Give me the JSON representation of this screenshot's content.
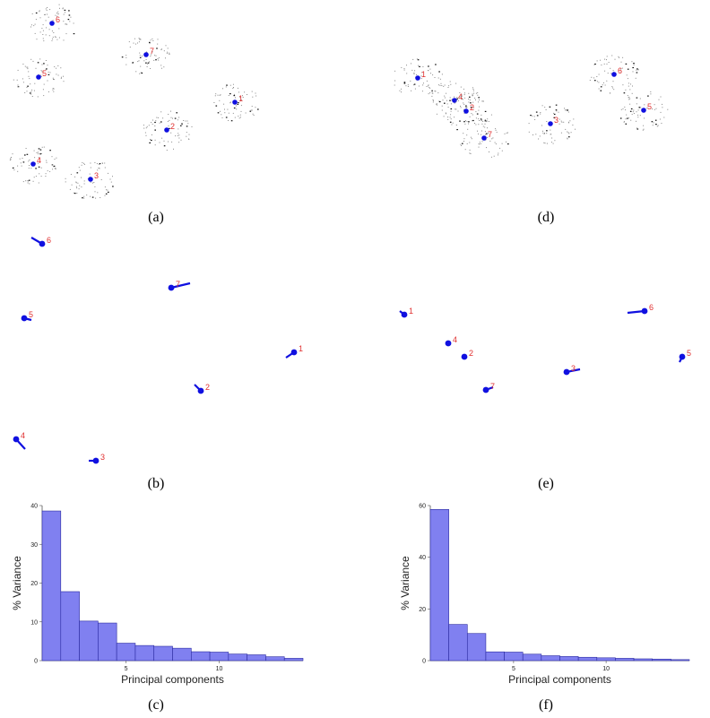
{
  "panels": {
    "a": {
      "caption": "(a)",
      "points": [
        {
          "label": "6",
          "x": 58,
          "y": 26
        },
        {
          "label": "7",
          "x": 163,
          "y": 61
        },
        {
          "label": "5",
          "x": 43,
          "y": 86
        },
        {
          "label": "1",
          "x": 262,
          "y": 114
        },
        {
          "label": "2",
          "x": 186,
          "y": 145
        },
        {
          "label": "4",
          "x": 37,
          "y": 183
        },
        {
          "label": "3",
          "x": 101,
          "y": 200
        }
      ]
    },
    "d": {
      "caption": "(d)",
      "points": [
        {
          "label": "1",
          "x": 466,
          "y": 87
        },
        {
          "label": "4",
          "x": 507,
          "y": 112
        },
        {
          "label": "2",
          "x": 520,
          "y": 124
        },
        {
          "label": "7",
          "x": 540,
          "y": 154
        },
        {
          "label": "3",
          "x": 614,
          "y": 138
        },
        {
          "label": "6",
          "x": 685,
          "y": 83
        },
        {
          "label": "5",
          "x": 718,
          "y": 123
        }
      ]
    },
    "b": {
      "caption": "(b)",
      "points": [
        {
          "label": "6",
          "x": 47,
          "y": 272,
          "tx": 35,
          "ty": 265
        },
        {
          "label": "7",
          "x": 191,
          "y": 321,
          "tx": 212,
          "ty": 316
        },
        {
          "label": "5",
          "x": 27,
          "y": 355,
          "tx": 35,
          "ty": 357
        },
        {
          "label": "1",
          "x": 328,
          "y": 393,
          "tx": 319,
          "ty": 399
        },
        {
          "label": "2",
          "x": 224,
          "y": 436,
          "tx": 217,
          "ty": 429
        },
        {
          "label": "4",
          "x": 18,
          "y": 490,
          "tx": 28,
          "ty": 501
        },
        {
          "label": "3",
          "x": 107,
          "y": 514,
          "tx": 99,
          "ty": 514
        }
      ]
    },
    "e": {
      "caption": "(e)",
      "points": [
        {
          "label": "1",
          "x": 451,
          "y": 351,
          "tx": 446,
          "ty": 347
        },
        {
          "label": "6",
          "x": 719,
          "y": 347,
          "tx": 700,
          "ty": 349
        },
        {
          "label": "4",
          "x": 500,
          "y": 383,
          "tx": 500,
          "ty": 383
        },
        {
          "label": "2",
          "x": 518,
          "y": 398,
          "tx": 518,
          "ty": 398
        },
        {
          "label": "5",
          "x": 761,
          "y": 398,
          "tx": 758,
          "ty": 404
        },
        {
          "label": "3",
          "x": 632,
          "y": 415,
          "tx": 647,
          "ty": 412
        },
        {
          "label": "7",
          "x": 542,
          "y": 435,
          "tx": 550,
          "ty": 432
        }
      ]
    }
  },
  "chart_data": [
    {
      "type": "bar",
      "caption": "(c)",
      "xlabel": "Principal components",
      "ylabel": "% Variance",
      "ylim": [
        0,
        40
      ],
      "yticks": [
        0,
        10,
        20,
        30,
        40
      ],
      "xticks": [
        5,
        10
      ],
      "categories": [
        1,
        2,
        3,
        4,
        5,
        6,
        7,
        8,
        9,
        10,
        11,
        12,
        13,
        14
      ],
      "values": [
        38.6,
        17.8,
        10.2,
        9.7,
        4.5,
        3.9,
        3.7,
        3.2,
        2.3,
        2.2,
        1.7,
        1.5,
        1.0,
        0.6
      ],
      "color": "#8080f0"
    },
    {
      "type": "bar",
      "caption": "(f)",
      "xlabel": "Principal components",
      "ylabel": "% Variance",
      "ylim": [
        0,
        60
      ],
      "yticks": [
        0,
        20,
        40,
        60
      ],
      "xticks": [
        5,
        10
      ],
      "categories": [
        1,
        2,
        3,
        4,
        5,
        6,
        7,
        8,
        9,
        10,
        11,
        12,
        13,
        14
      ],
      "values": [
        58.5,
        14.0,
        10.5,
        3.4,
        3.3,
        2.5,
        1.9,
        1.6,
        1.3,
        1.1,
        0.9,
        0.7,
        0.6,
        0.4
      ],
      "color": "#8080f0"
    }
  ],
  "colors": {
    "point": "#1010e0",
    "label": "#e03030",
    "bar": "#8080f0",
    "bar_edge": "#2a2aa0"
  }
}
